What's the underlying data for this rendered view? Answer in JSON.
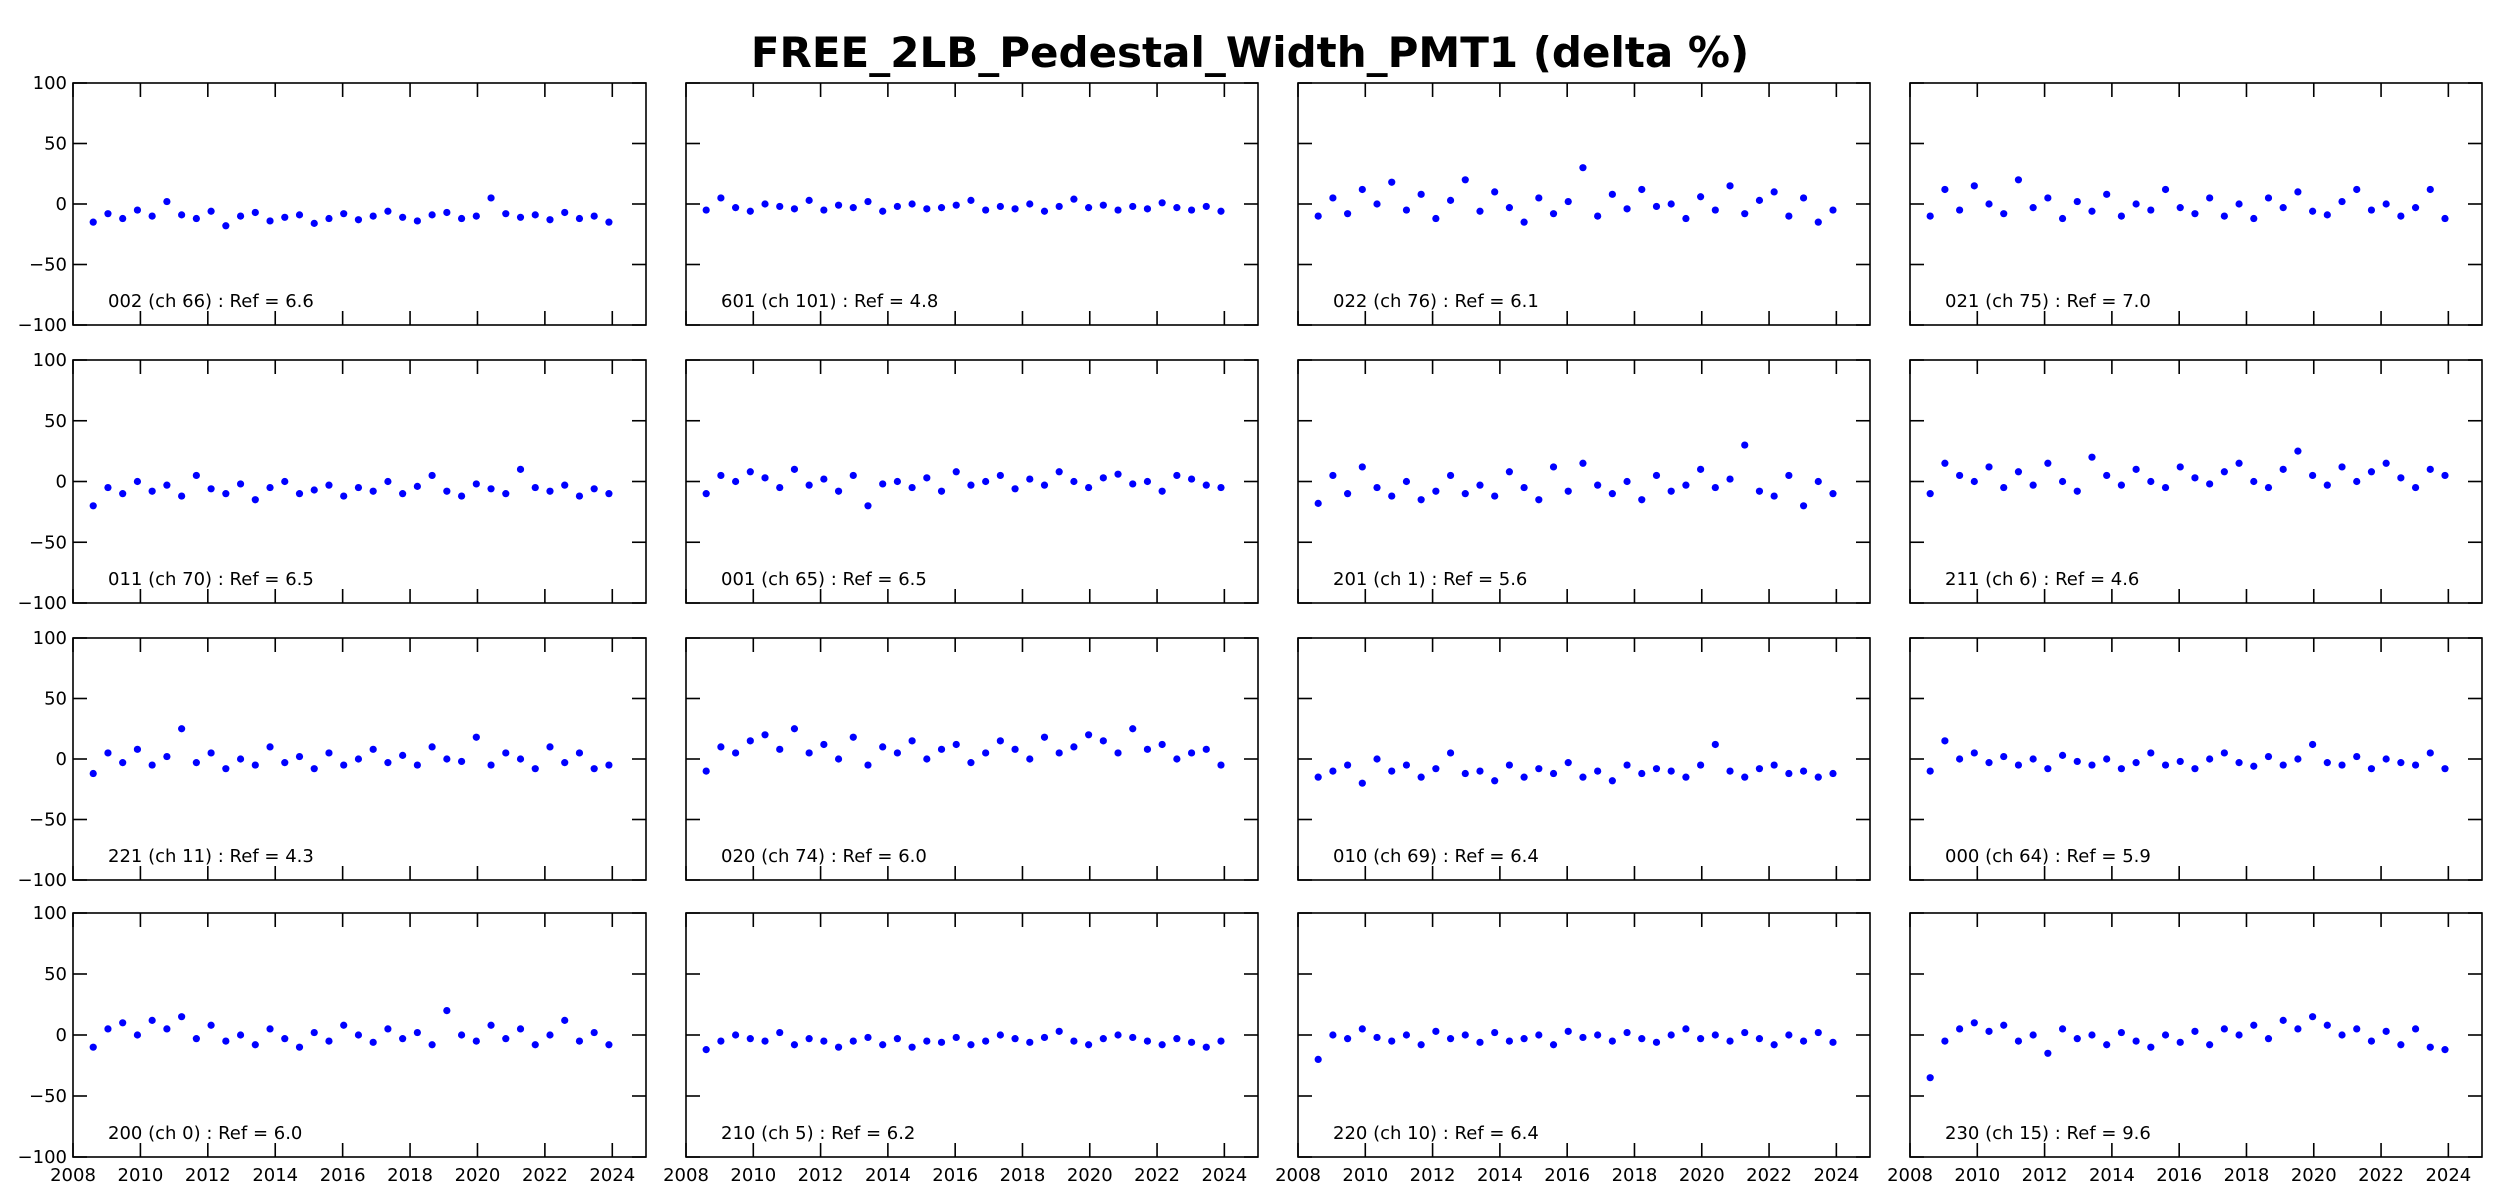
{
  "chart_data": {
    "type": "scatter",
    "title": "FREE_2LB_Pedestal_Width_PMT1 (delta %)",
    "xlim": [
      2008,
      2025
    ],
    "ylim": [
      -100,
      100
    ],
    "xticks": [
      2008,
      2010,
      2012,
      2014,
      2016,
      2018,
      2020,
      2022,
      2024
    ],
    "yticks": [
      -100,
      -50,
      0,
      50,
      100
    ],
    "x_range": [
      2008.6,
      2023.9
    ],
    "grid": false,
    "marker_color": "#0000ff",
    "layout": "4x4",
    "panels": [
      {
        "label": "002 (ch 66) : Ref = 6.6",
        "y": [
          -15,
          -8,
          -12,
          -5,
          -10,
          2,
          -9,
          -12,
          -6,
          -18,
          -10,
          -7,
          -14,
          -11,
          -9,
          -16,
          -12,
          -8,
          -13,
          -10,
          -6,
          -11,
          -14,
          -9,
          -7,
          -12,
          -10,
          5,
          -8,
          -11,
          -9,
          -13,
          -7,
          -12,
          -10,
          -15
        ]
      },
      {
        "label": "601 (ch 101) : Ref = 4.8",
        "y": [
          -5,
          5,
          -3,
          -6,
          0,
          -2,
          -4,
          3,
          -5,
          -1,
          -3,
          2,
          -6,
          -2,
          0,
          -4,
          -3,
          -1,
          3,
          -5,
          -2,
          -4,
          0,
          -6,
          -2,
          4,
          -3,
          -1,
          -5,
          -2,
          -4,
          1,
          -3,
          -5,
          -2,
          -6
        ]
      },
      {
        "label": "022 (ch 76) : Ref = 6.1",
        "y": [
          -10,
          5,
          -8,
          12,
          0,
          18,
          -5,
          8,
          -12,
          3,
          20,
          -6,
          10,
          -3,
          -15,
          5,
          -8,
          2,
          30,
          -10,
          8,
          -4,
          12,
          -2,
          0,
          -12,
          6,
          -5,
          15,
          -8,
          3,
          10,
          -10,
          5,
          -15,
          -5
        ]
      },
      {
        "label": "021 (ch 75) : Ref = 7.0",
        "y": [
          -10,
          12,
          -5,
          15,
          0,
          -8,
          20,
          -3,
          5,
          -12,
          2,
          -6,
          8,
          -10,
          0,
          -5,
          12,
          -3,
          -8,
          5,
          -10,
          0,
          -12,
          5,
          -3,
          10,
          -6,
          -9,
          2,
          12,
          -5,
          0,
          -10,
          -3,
          12,
          -12
        ]
      },
      {
        "label": "011 (ch 70) : Ref = 6.5",
        "y": [
          -20,
          -5,
          -10,
          0,
          -8,
          -3,
          -12,
          5,
          -6,
          -10,
          -2,
          -15,
          -5,
          0,
          -10,
          -7,
          -3,
          -12,
          -5,
          -8,
          0,
          -10,
          -4,
          5,
          -8,
          -12,
          -2,
          -6,
          -10,
          10,
          -5,
          -8,
          -3,
          -12,
          -6,
          -10
        ]
      },
      {
        "label": "001 (ch 65) : Ref = 6.5",
        "y": [
          -10,
          5,
          0,
          8,
          3,
          -5,
          10,
          -3,
          2,
          -8,
          5,
          -20,
          -2,
          0,
          -5,
          3,
          -8,
          8,
          -3,
          0,
          5,
          -6,
          2,
          -3,
          8,
          0,
          -5,
          3,
          6,
          -2,
          0,
          -8,
          5,
          2,
          -3,
          -5
        ]
      },
      {
        "label": "201 (ch 1) : Ref = 5.6",
        "y": [
          -18,
          5,
          -10,
          12,
          -5,
          -12,
          0,
          -15,
          -8,
          5,
          -10,
          -3,
          -12,
          8,
          -5,
          -15,
          12,
          -8,
          15,
          -3,
          -10,
          0,
          -15,
          5,
          -8,
          -3,
          10,
          -5,
          2,
          30,
          -8,
          -12,
          5,
          -20,
          0,
          -10
        ]
      },
      {
        "label": "211 (ch 6) : Ref = 4.6",
        "y": [
          -10,
          15,
          5,
          0,
          12,
          -5,
          8,
          -3,
          15,
          0,
          -8,
          20,
          5,
          -3,
          10,
          0,
          -5,
          12,
          3,
          -2,
          8,
          15,
          0,
          -5,
          10,
          25,
          5,
          -3,
          12,
          0,
          8,
          15,
          3,
          -5,
          10,
          5
        ]
      },
      {
        "label": "221 (ch 11) : Ref = 4.3",
        "y": [
          -12,
          5,
          -3,
          8,
          -5,
          2,
          25,
          -3,
          5,
          -8,
          0,
          -5,
          10,
          -3,
          2,
          -8,
          5,
          -5,
          0,
          8,
          -3,
          3,
          -5,
          10,
          0,
          -2,
          18,
          -5,
          5,
          0,
          -8,
          10,
          -3,
          5,
          -8,
          -5
        ]
      },
      {
        "label": "020 (ch 74) : Ref = 6.0",
        "y": [
          -10,
          10,
          5,
          15,
          20,
          8,
          25,
          5,
          12,
          0,
          18,
          -5,
          10,
          5,
          15,
          0,
          8,
          12,
          -3,
          5,
          15,
          8,
          0,
          18,
          5,
          10,
          20,
          15,
          5,
          25,
          8,
          12,
          0,
          5,
          8,
          -5
        ]
      },
      {
        "label": "010 (ch 69) : Ref = 6.4",
        "y": [
          -15,
          -10,
          -5,
          -20,
          0,
          -10,
          -5,
          -15,
          -8,
          5,
          -12,
          -10,
          -18,
          -5,
          -15,
          -8,
          -12,
          -3,
          -15,
          -10,
          -18,
          -5,
          -12,
          -8,
          -10,
          -15,
          -5,
          12,
          -10,
          -15,
          -8,
          -5,
          -12,
          -10,
          -15,
          -12
        ]
      },
      {
        "label": "000 (ch 64) : Ref = 5.9",
        "y": [
          -10,
          15,
          0,
          5,
          -3,
          2,
          -5,
          0,
          -8,
          3,
          -2,
          -5,
          0,
          -8,
          -3,
          5,
          -5,
          -2,
          -8,
          0,
          5,
          -3,
          -6,
          2,
          -5,
          0,
          12,
          -3,
          -5,
          2,
          -8,
          0,
          -3,
          -5,
          5,
          -8
        ]
      },
      {
        "label": "200 (ch 0) : Ref = 6.0",
        "y": [
          -10,
          5,
          10,
          0,
          12,
          5,
          15,
          -3,
          8,
          -5,
          0,
          -8,
          5,
          -3,
          -10,
          2,
          -5,
          8,
          0,
          -6,
          5,
          -3,
          2,
          -8,
          20,
          0,
          -5,
          8,
          -3,
          5,
          -8,
          0,
          12,
          -5,
          2,
          -8
        ]
      },
      {
        "label": "210 (ch 5) : Ref = 6.2",
        "y": [
          -12,
          -5,
          0,
          -3,
          -5,
          2,
          -8,
          -3,
          -5,
          -10,
          -5,
          -2,
          -8,
          -3,
          -10,
          -5,
          -6,
          -2,
          -8,
          -5,
          0,
          -3,
          -6,
          -2,
          3,
          -5,
          -8,
          -3,
          0,
          -2,
          -5,
          -8,
          -3,
          -6,
          -10,
          -5
        ]
      },
      {
        "label": "220 (ch 10) : Ref = 6.4",
        "y": [
          -20,
          0,
          -3,
          5,
          -2,
          -5,
          0,
          -8,
          3,
          -3,
          0,
          -6,
          2,
          -5,
          -3,
          0,
          -8,
          3,
          -2,
          0,
          -5,
          2,
          -3,
          -6,
          0,
          5,
          -3,
          0,
          -5,
          2,
          -3,
          -8,
          0,
          -5,
          2,
          -6
        ]
      },
      {
        "label": "230 (ch 15) : Ref = 9.6",
        "y": [
          -35,
          -5,
          5,
          10,
          3,
          8,
          -5,
          0,
          -15,
          5,
          -3,
          0,
          -8,
          2,
          -5,
          -10,
          0,
          -6,
          3,
          -8,
          5,
          0,
          8,
          -3,
          12,
          5,
          15,
          8,
          0,
          5,
          -5,
          3,
          -8,
          5,
          -10,
          -12
        ]
      }
    ]
  }
}
